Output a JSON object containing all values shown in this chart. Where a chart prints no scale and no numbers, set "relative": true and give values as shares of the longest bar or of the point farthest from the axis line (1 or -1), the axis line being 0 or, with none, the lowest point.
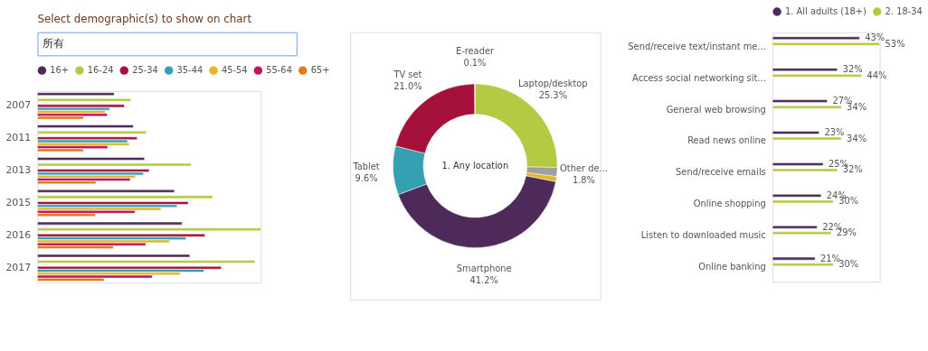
{
  "chart_data": [
    {
      "type": "bar",
      "orientation": "horizontal",
      "relative": true,
      "title": "Select demographic(s) to show on chart",
      "annotations": [
        "所有"
      ],
      "legend": "top",
      "categories": [
        "2007",
        "2011",
        "2013",
        "2015",
        "2016",
        "2017"
      ],
      "series": [
        {
          "name": "16+",
          "color": "#4e2a5a",
          "values": [
            0.343,
            0.429,
            0.479,
            0.613,
            0.647,
            0.682
          ]
        },
        {
          "name": "16-24",
          "color": "#b5c942",
          "values": [
            0.418,
            0.488,
            0.688,
            0.784,
            1.0,
            0.974
          ]
        },
        {
          "name": "25-34",
          "color": "#a6113a",
          "values": [
            0.389,
            0.446,
            0.5,
            0.675,
            0.75,
            0.823
          ]
        },
        {
          "name": "35-44",
          "color": "#36a0b3",
          "values": [
            0.323,
            0.403,
            0.474,
            0.625,
            0.665,
            0.745
          ]
        },
        {
          "name": "45-54",
          "color": "#e3b828",
          "values": [
            0.303,
            0.411,
            0.439,
            0.553,
            0.591,
            0.639
          ]
        },
        {
          "name": "55-64",
          "color": "#c4115f",
          "values": [
            0.312,
            0.314,
            0.415,
            0.437,
            0.485,
            0.514
          ]
        },
        {
          "name": "65+",
          "color": "#e07b1c",
          "values": [
            0.206,
            0.206,
            0.262,
            0.259,
            0.34,
            0.298
          ]
        }
      ]
    },
    {
      "type": "donut",
      "annotations": [
        "1. Any location"
      ],
      "categories": [
        "Laptop/desktop",
        "Other de...",
        null,
        "Smartphone",
        "Tablet",
        "TV set",
        "E-reader"
      ],
      "values": [
        25.3,
        1.8,
        1.0,
        41.2,
        9.6,
        21.0,
        0.1
      ],
      "value_labels": [
        "25.3%",
        "1.8%",
        null,
        "41.2%",
        "9.6%",
        "21.0%",
        "0.1%"
      ],
      "colors": [
        "#b5c942",
        "#a0a0a0",
        "#e3b828",
        "#4e2a5a",
        "#36a0b3",
        "#a6113a",
        "#a0a0a0"
      ]
    },
    {
      "type": "bar",
      "orientation": "horizontal",
      "legend": "top",
      "categories": [
        "Send/receive text/instant me...",
        "Access social networking sit...",
        "General web browsing",
        "Read news online",
        "Send/receive emails",
        "Online shopping",
        "Listen to downloaded music",
        "Online banking"
      ],
      "series": [
        {
          "name": "1. All adults (18+)",
          "color": "#4e2a5a",
          "values": [
            43,
            32,
            27,
            23,
            25,
            24,
            22,
            21
          ],
          "value_labels": [
            "43%",
            "32%",
            "27%",
            "23%",
            "25%",
            "24%",
            "22%",
            "21%"
          ]
        },
        {
          "name": "2. 18-34",
          "color": "#b5c942",
          "values": [
            53,
            44,
            34,
            34,
            32,
            30,
            29,
            30
          ],
          "value_labels": [
            "53%",
            "44%",
            "34%",
            "34%",
            "32%",
            "30%",
            "29%",
            "30%"
          ]
        }
      ]
    }
  ]
}
